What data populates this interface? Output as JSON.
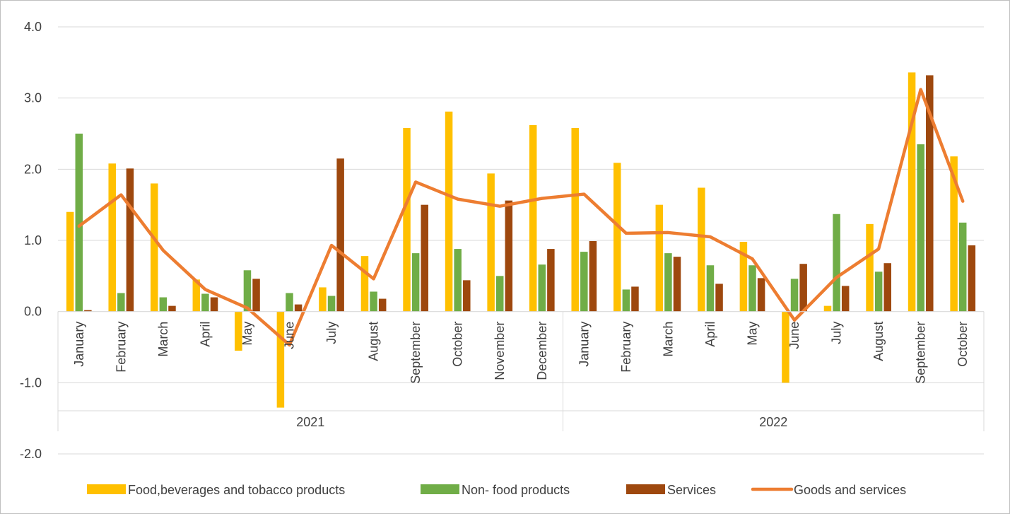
{
  "chart_data": {
    "type": "bar",
    "title": "",
    "xlabel": "",
    "ylabel": "",
    "ylim": [
      -2.0,
      4.0
    ],
    "y_ticks": [
      "4.0",
      "3.0",
      "2.0",
      "1.0",
      "0.0",
      "-1.0",
      "-2.0"
    ],
    "grid": true,
    "legend_position": "bottom",
    "groups": [
      {
        "label": "2021",
        "categories": [
          "January",
          "February",
          "March",
          "April",
          "May",
          "June",
          "July",
          "August",
          "September",
          "October",
          "November",
          "December"
        ]
      },
      {
        "label": "2022",
        "categories": [
          "January",
          "February",
          "March",
          "April",
          "May",
          "June",
          "July",
          "August",
          "September",
          "October"
        ]
      }
    ],
    "series": [
      {
        "name": "Food,beverages and tobacco products",
        "kind": "bar",
        "color": "#FFC000",
        "values": [
          1.4,
          2.08,
          1.8,
          0.45,
          -0.55,
          -1.35,
          0.34,
          0.78,
          2.58,
          2.81,
          1.94,
          2.62,
          2.58,
          2.09,
          1.5,
          1.74,
          0.98,
          -1.0,
          0.08,
          1.23,
          3.36,
          2.18
        ]
      },
      {
        "name": "Non- food products",
        "kind": "bar",
        "color": "#70AD47",
        "values": [
          2.5,
          0.26,
          0.2,
          0.25,
          0.58,
          0.26,
          0.22,
          0.28,
          0.82,
          0.88,
          0.5,
          0.66,
          0.84,
          0.31,
          0.82,
          0.65,
          0.65,
          0.46,
          1.37,
          0.56,
          2.35,
          1.25
        ]
      },
      {
        "name": "Services",
        "kind": "bar",
        "color": "#9E480E",
        "values": [
          0.02,
          2.01,
          0.08,
          0.2,
          0.46,
          0.1,
          2.15,
          0.18,
          1.5,
          0.44,
          1.56,
          0.88,
          0.99,
          0.35,
          0.77,
          0.39,
          0.47,
          0.67,
          0.36,
          0.68,
          3.32,
          0.93
        ]
      },
      {
        "name": "Goods and services",
        "kind": "line",
        "color": "#ED7D31",
        "values": [
          1.2,
          1.64,
          0.86,
          0.31,
          0.05,
          -0.47,
          0.93,
          0.46,
          1.82,
          1.58,
          1.48,
          1.59,
          1.65,
          1.1,
          1.11,
          1.05,
          0.74,
          -0.12,
          0.48,
          0.88,
          3.12,
          1.55
        ]
      }
    ]
  }
}
